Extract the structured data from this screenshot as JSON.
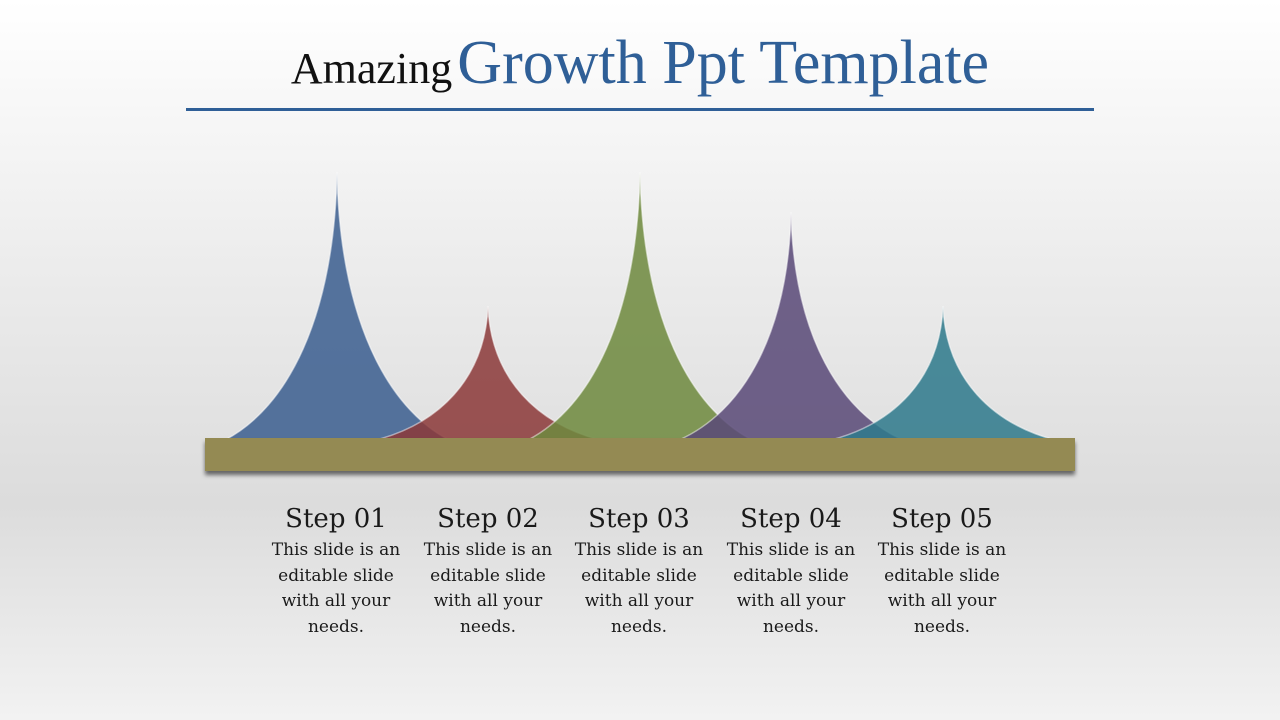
{
  "title": {
    "plain": "Amazing",
    "accent": "Growth Ppt Template"
  },
  "colors": {
    "accent": "#2f5f97",
    "base_bar": "#948a52",
    "peaks": [
      "#3c5f90",
      "#8c3a3a",
      "#6f8a3f",
      "#5a4a78",
      "#2f7a8c"
    ]
  },
  "steps": [
    {
      "title": "Step 01",
      "desc": "This slide is an editable slide with all your needs.",
      "level": 1.0
    },
    {
      "title": "Step 02",
      "desc": "This slide is an editable slide with all your needs.",
      "level": 0.5
    },
    {
      "title": "Step 03",
      "desc": "This slide is an editable slide with all your needs.",
      "level": 1.0
    },
    {
      "title": "Step 04",
      "desc": "This slide is an editable slide with all your needs.",
      "level": 0.85
    },
    {
      "title": "Step 05",
      "desc": "This slide is an editable slide with all your needs.",
      "level": 0.5
    }
  ]
}
